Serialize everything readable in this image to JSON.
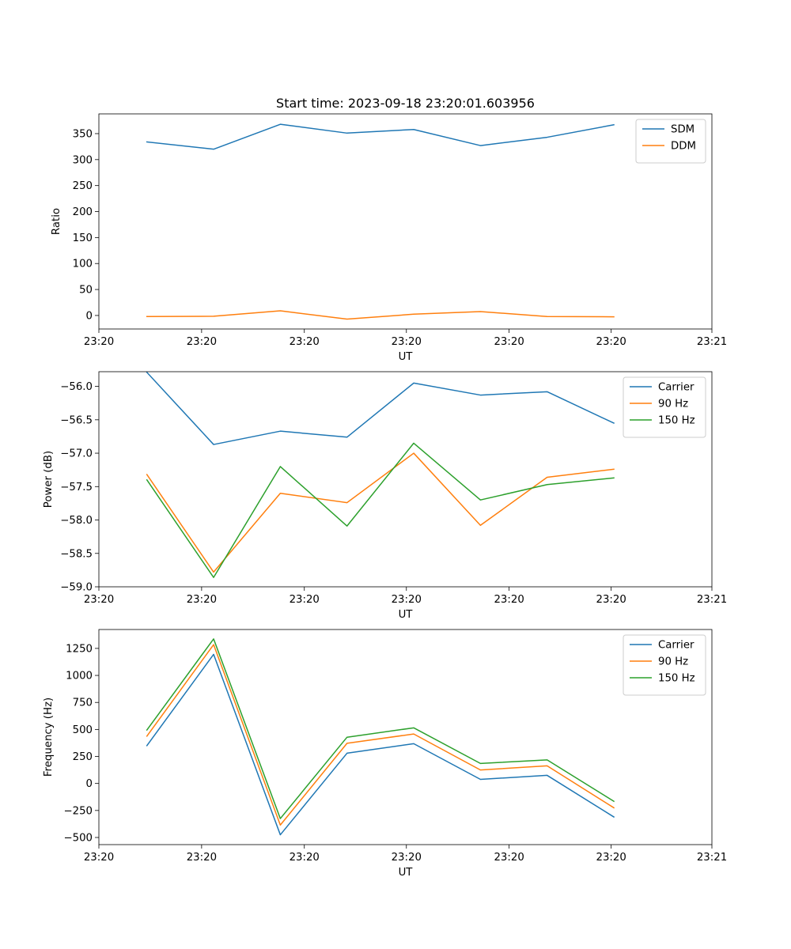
{
  "chart_data": [
    {
      "type": "line",
      "title": "Start time: 2023-09-18 23:20:01.603956",
      "xlabel": "UT",
      "ylabel": "Ratio",
      "x": [
        0,
        1,
        2,
        3,
        4,
        5,
        6,
        7
      ],
      "xlim": [
        -0.72,
        8.47
      ],
      "xticks": [
        -0.72,
        0.82,
        2.36,
        3.89,
        5.43,
        6.96,
        8.47
      ],
      "xtick_labels": [
        "23:20",
        "23:20",
        "23:20",
        "23:20",
        "23:20",
        "23:20",
        "23:21"
      ],
      "ylim": [
        -26,
        388
      ],
      "yticks": [
        0,
        50,
        100,
        150,
        200,
        250,
        300,
        350
      ],
      "ytick_labels": [
        "0",
        "50",
        "100",
        "150",
        "200",
        "250",
        "300",
        "350"
      ],
      "legend_loc": "upper-right",
      "series": [
        {
          "name": "SDM",
          "color": "#1f77b4",
          "values": [
            334,
            320,
            368,
            351,
            358,
            327,
            343,
            367
          ]
        },
        {
          "name": "DDM",
          "color": "#ff7f0e",
          "values": [
            -2,
            -1.5,
            9,
            -7,
            2.5,
            7.5,
            -2,
            -2.5
          ]
        }
      ]
    },
    {
      "type": "line",
      "title": "",
      "xlabel": "UT",
      "ylabel": "Power (dB)",
      "x": [
        0,
        1,
        2,
        3,
        4,
        5,
        6,
        7
      ],
      "xlim": [
        -0.72,
        8.47
      ],
      "xticks": [
        -0.72,
        0.82,
        2.36,
        3.89,
        5.43,
        6.96,
        8.47
      ],
      "xtick_labels": [
        "23:20",
        "23:20",
        "23:20",
        "23:20",
        "23:20",
        "23:20",
        "23:21"
      ],
      "ylim": [
        -59.0,
        -55.78
      ],
      "yticks": [
        -59.0,
        -58.5,
        -58.0,
        -57.5,
        -57.0,
        -56.5,
        -56.0
      ],
      "ytick_labels": [
        "−59.0",
        "−58.5",
        "−58.0",
        "−57.5",
        "−57.0",
        "−56.5",
        "−56.0"
      ],
      "legend_loc": "upper-right",
      "series": [
        {
          "name": "Carrier",
          "color": "#1f77b4",
          "values": [
            -55.79,
            -56.87,
            -56.67,
            -56.76,
            -55.95,
            -56.13,
            -56.08,
            -56.55
          ]
        },
        {
          "name": "90 Hz",
          "color": "#ff7f0e",
          "values": [
            -57.32,
            -58.78,
            -57.6,
            -57.74,
            -57.0,
            -58.08,
            -57.36,
            -57.24
          ]
        },
        {
          "name": "150 Hz",
          "color": "#2ca02c",
          "values": [
            -57.4,
            -58.86,
            -57.2,
            -58.09,
            -56.85,
            -57.7,
            -57.47,
            -57.37
          ]
        }
      ]
    },
    {
      "type": "line",
      "title": "",
      "xlabel": "UT",
      "ylabel": "Frequency (Hz)",
      "x": [
        0,
        1,
        2,
        3,
        4,
        5,
        6,
        7
      ],
      "xlim": [
        -0.72,
        8.47
      ],
      "xticks": [
        -0.72,
        0.82,
        2.36,
        3.89,
        5.43,
        6.96,
        8.47
      ],
      "xtick_labels": [
        "23:20",
        "23:20",
        "23:20",
        "23:20",
        "23:20",
        "23:20",
        "23:21"
      ],
      "ylim": [
        -566,
        1425
      ],
      "yticks": [
        -500,
        -250,
        0,
        250,
        500,
        750,
        1000,
        1250
      ],
      "ytick_labels": [
        "−500",
        "−250",
        "0",
        "250",
        "500",
        "750",
        "1000",
        "1250"
      ],
      "legend_loc": "upper-right",
      "series": [
        {
          "name": "Carrier",
          "color": "#1f77b4",
          "values": [
            350,
            1195,
            -475,
            280,
            368,
            38,
            75,
            -310
          ]
        },
        {
          "name": "90 Hz",
          "color": "#ff7f0e",
          "values": [
            438,
            1285,
            -385,
            372,
            458,
            125,
            163,
            -225
          ]
        },
        {
          "name": "150 Hz",
          "color": "#2ca02c",
          "values": [
            495,
            1338,
            -325,
            428,
            515,
            185,
            218,
            -165
          ]
        }
      ]
    }
  ]
}
